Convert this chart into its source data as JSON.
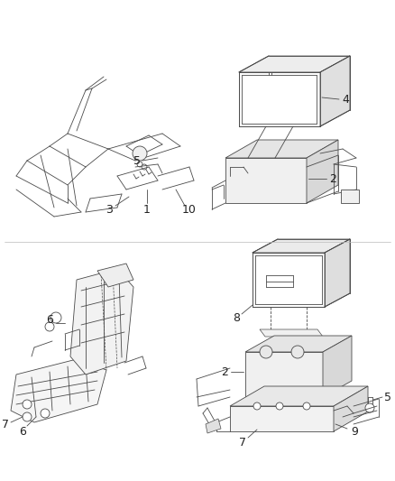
{
  "background": "#ffffff",
  "line_color": "#4a4a4a",
  "label_color": "#222222",
  "font_size": 8,
  "lw": 0.6,
  "fig_w": 4.38,
  "fig_h": 5.33,
  "dpi": 100
}
